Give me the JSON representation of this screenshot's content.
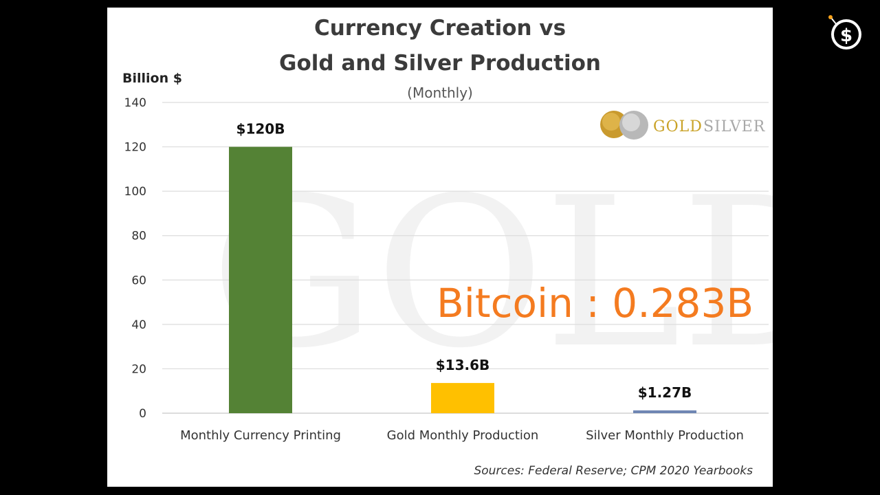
{
  "chart_data": {
    "type": "bar",
    "title_lines": [
      "Currency Creation vs",
      "Gold and Silver Production"
    ],
    "subtitle": "(Monthly)",
    "ylabel": "Billion $",
    "xlabel": "",
    "ylim": [
      0,
      140
    ],
    "yticks": [
      "0",
      "20",
      "40",
      "60",
      "80",
      "100",
      "120",
      "140"
    ],
    "categories": [
      "Monthly Currency Printing",
      "Gold Monthly Production",
      "Silver Monthly Production"
    ],
    "values": [
      120,
      13.6,
      1.27
    ],
    "data_labels": [
      "$120B",
      "$13.6B",
      "$1.27B"
    ],
    "bar_colors": [
      "#548235",
      "#ffc000",
      "#6f86b3"
    ],
    "grid": true,
    "source": "Sources: Federal Reserve; CPM 2020 Yearbooks",
    "annotation": "Bitcoin : 0.283B",
    "annotation_color": "#f47b20"
  },
  "brand": {
    "logo_text_gold": "GOLD",
    "logo_text_silver": "SILVER",
    "watermark": "GOLD SILVER"
  },
  "corner_logo": {
    "icon": "dollar-bomb-icon"
  }
}
